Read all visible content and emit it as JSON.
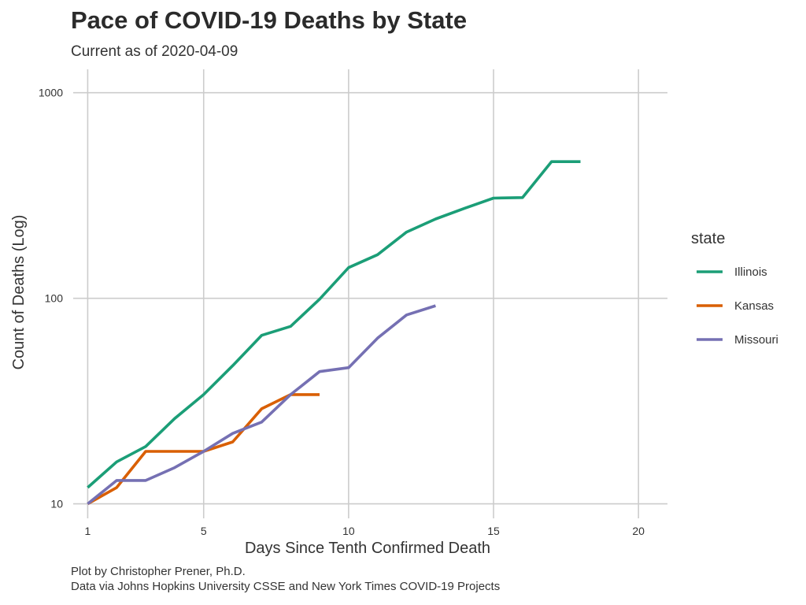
{
  "chart_data": {
    "type": "line",
    "title": "Pace of COVID-19 Deaths by State",
    "subtitle": "Current as of 2020-04-09",
    "xlabel": "Days Since Tenth Confirmed Death",
    "ylabel": "Count of Deaths (Log)",
    "y_scale": "log10",
    "xlim": [
      0.5,
      21
    ],
    "ylim": [
      8.5,
      1300
    ],
    "x_ticks": [
      1,
      5,
      10,
      15,
      20
    ],
    "x_tick_labels": [
      "1",
      "5",
      "10",
      "15",
      "20"
    ],
    "y_ticks": [
      10,
      100,
      1000
    ],
    "y_tick_labels": [
      "10",
      "100",
      "1000"
    ],
    "grid": true,
    "legend": {
      "title": "state",
      "placement": "right"
    },
    "series": [
      {
        "name": "Illinois",
        "color": "#1b9e77",
        "x": [
          1,
          2,
          3,
          4,
          5,
          6,
          7,
          8,
          9,
          10,
          11,
          12,
          13,
          14,
          15,
          16,
          17,
          18
        ],
        "y": [
          12,
          16,
          19,
          26,
          34,
          47,
          66,
          73,
          99,
          141,
          163,
          210,
          243,
          274,
          307,
          309,
          462,
          462
        ]
      },
      {
        "name": "Kansas",
        "color": "#d95f02",
        "x": [
          1,
          2,
          3,
          4,
          5,
          6,
          7,
          8,
          9
        ],
        "y": [
          10,
          12,
          18,
          18,
          18,
          20,
          29,
          34,
          34
        ]
      },
      {
        "name": "Missouri",
        "color": "#7570b3",
        "x": [
          1,
          2,
          3,
          4,
          5,
          6,
          7,
          8,
          9,
          10,
          11,
          12,
          13
        ],
        "y": [
          10,
          13,
          13,
          15,
          18,
          22,
          25,
          34,
          44,
          46,
          64,
          83,
          92
        ]
      }
    ]
  },
  "caption": {
    "line1": "Plot by Christopher Prener, Ph.D.",
    "line2": "Data via Johns Hopkins University CSSE and New York Times COVID-19 Projects"
  }
}
